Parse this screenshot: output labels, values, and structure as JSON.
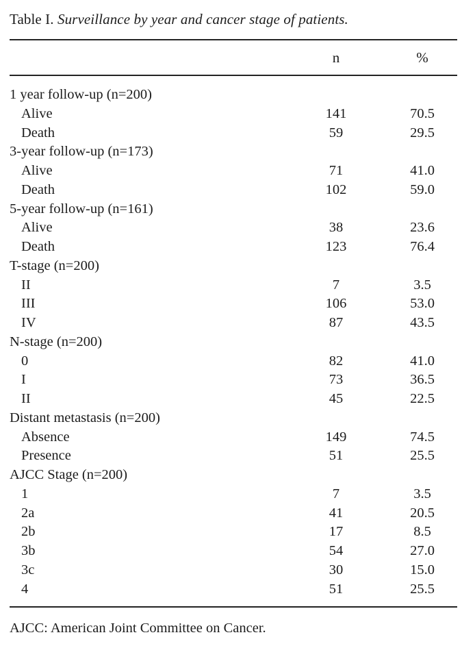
{
  "title": {
    "prefix": "Table I. ",
    "text": "Surveillance by year and cancer stage of patients."
  },
  "columns": {
    "n": "n",
    "pct": "%"
  },
  "sections": [
    {
      "header": "1 year follow-up (n=200)",
      "rows": [
        {
          "label": "Alive",
          "n": "141",
          "pct": "70.5"
        },
        {
          "label": "Death",
          "n": "59",
          "pct": "29.5"
        }
      ]
    },
    {
      "header": "3-year follow-up (n=173)",
      "rows": [
        {
          "label": "Alive",
          "n": "71",
          "pct": "41.0"
        },
        {
          "label": "Death",
          "n": "102",
          "pct": "59.0"
        }
      ]
    },
    {
      "header": "5-year follow-up (n=161)",
      "rows": [
        {
          "label": "Alive",
          "n": "38",
          "pct": "23.6"
        },
        {
          "label": "Death",
          "n": "123",
          "pct": "76.4"
        }
      ]
    },
    {
      "header": "T-stage (n=200)",
      "rows": [
        {
          "label": "II",
          "n": "7",
          "pct": "3.5"
        },
        {
          "label": "III",
          "n": "106",
          "pct": "53.0"
        },
        {
          "label": "IV",
          "n": "87",
          "pct": "43.5"
        }
      ]
    },
    {
      "header": "N-stage (n=200)",
      "rows": [
        {
          "label": "0",
          "n": "82",
          "pct": "41.0"
        },
        {
          "label": "I",
          "n": "73",
          "pct": "36.5"
        },
        {
          "label": "II",
          "n": "45",
          "pct": "22.5"
        }
      ]
    },
    {
      "header": "Distant metastasis (n=200)",
      "rows": [
        {
          "label": "Absence",
          "n": "149",
          "pct": "74.5"
        },
        {
          "label": "Presence",
          "n": "51",
          "pct": "25.5"
        }
      ]
    },
    {
      "header": "AJCC Stage (n=200)",
      "rows": [
        {
          "label": "1",
          "n": "7",
          "pct": "3.5"
        },
        {
          "label": "2a",
          "n": "41",
          "pct": "20.5"
        },
        {
          "label": "2b",
          "n": "17",
          "pct": "8.5"
        },
        {
          "label": "3b",
          "n": "54",
          "pct": "27.0"
        },
        {
          "label": "3c",
          "n": "30",
          "pct": "15.0"
        },
        {
          "label": "4",
          "n": "51",
          "pct": "25.5"
        }
      ]
    }
  ],
  "footnote": "AJCC: American Joint Committee on Cancer.",
  "colors": {
    "background": "#ffffff",
    "text": "#1c1c1c",
    "rule": "#232323"
  }
}
